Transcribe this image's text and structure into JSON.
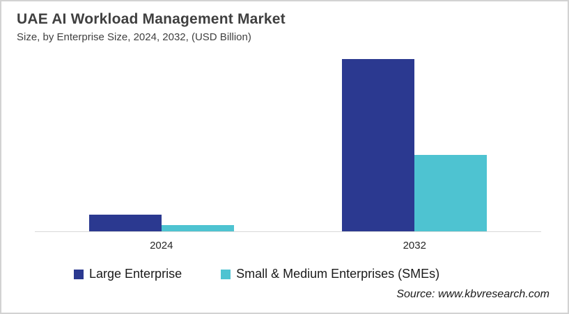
{
  "header": {
    "title": "UAE AI Workload Management Market",
    "subtitle": "Size, by Enterprise Size, 2024, 2032, (USD Billion)"
  },
  "legend": {
    "items": [
      {
        "label": "Large Enterprise",
        "color": "#2b3990"
      },
      {
        "label": "Small & Medium Enterprises (SMEs)",
        "color": "#4ec3d1"
      }
    ]
  },
  "source": "Source: www.kbvresearch.com",
  "colors": {
    "large_enterprise": "#2b3990",
    "smes": "#4ec3d1",
    "axis_line": "#d9d9d9",
    "title_text": "#404040",
    "card_border": "#d2d2d2"
  },
  "chart_data": {
    "type": "bar",
    "title": "UAE AI Workload Management Market",
    "subtitle": "Size, by Enterprise Size, 2024, 2032, (USD Billion)",
    "categories": [
      "2024",
      "2032"
    ],
    "series": [
      {
        "name": "Large Enterprise",
        "color": "#2b3990",
        "values": [
          9.7,
          100
        ]
      },
      {
        "name": "Small & Medium Enterprises (SMEs)",
        "color": "#4ec3d1",
        "values": [
          3.6,
          44.4
        ]
      }
    ],
    "value_units": "relative bar height, % of tallest bar (y-axis not labeled in chart)",
    "ylim": [
      0,
      100
    ],
    "grid": false,
    "y_axis_labels_shown": false,
    "x_axis_line": true,
    "legend_position": "bottom"
  }
}
